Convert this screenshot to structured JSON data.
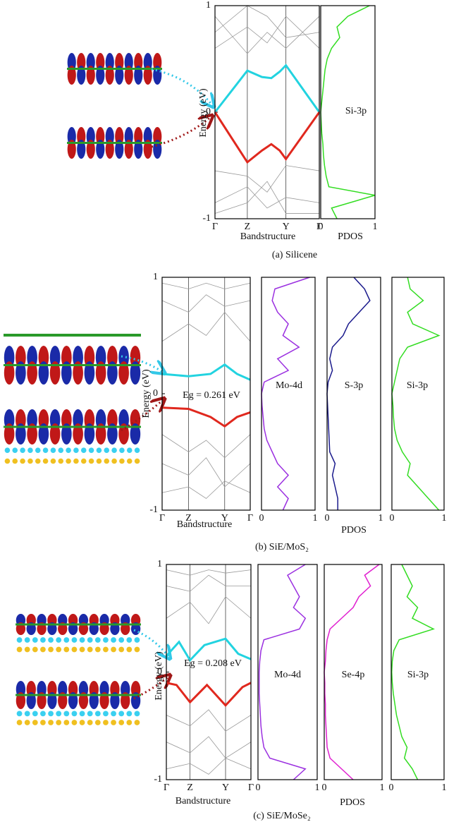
{
  "chart_data": [
    {
      "type": "band",
      "ylabel": "Energy (eV)",
      "xlabel": "Bandstructure",
      "caption": "(a)  Silicene",
      "xlim": [
        0,
        1
      ],
      "ylim": [
        -1,
        1
      ],
      "yticks": [
        -1,
        0,
        1
      ],
      "xticks": [
        {
          "value": 0,
          "label": "Γ"
        },
        {
          "value": 0.31,
          "label": "Z"
        },
        {
          "value": 0.68,
          "label": "Y"
        },
        {
          "value": 1,
          "label": "Γ"
        }
      ],
      "series": [
        {
          "color": "#999999",
          "x": [
            0,
            0.31,
            0.5,
            0.68,
            1
          ],
          "values": [
            0.6,
            0.8,
            0.65,
            0.9,
            0.6
          ]
        },
        {
          "color": "#999999",
          "x": [
            0,
            0.31,
            0.5,
            0.68,
            1
          ],
          "values": [
            0.9,
            0.55,
            0.75,
            0.6,
            0.9
          ]
        },
        {
          "color": "#999999",
          "x": [
            0,
            0.31,
            0.5,
            0.68,
            1
          ],
          "values": [
            0.75,
            1,
            0.9,
            0.7,
            0.75
          ]
        },
        {
          "color": "#999999",
          "x": [
            0,
            0.31,
            0.5,
            0.68,
            1
          ],
          "values": [
            -0.55,
            -0.6,
            -0.75,
            -0.5,
            -0.55
          ]
        },
        {
          "color": "#999999",
          "x": [
            0,
            0.31,
            0.5,
            0.68,
            1
          ],
          "values": [
            -0.85,
            -0.7,
            -0.9,
            -0.8,
            -0.85
          ]
        },
        {
          "color": "#999999",
          "x": [
            0,
            0.31,
            0.5,
            0.68,
            1
          ],
          "values": [
            -0.95,
            -0.85,
            -0.65,
            -0.95,
            -0.95
          ]
        },
        {
          "color": "#22d3e0",
          "highlight": true,
          "x": [
            0,
            0.31,
            0.45,
            0.54,
            0.62,
            0.68,
            0.84,
            1
          ],
          "values": [
            0,
            0.39,
            0.33,
            0.32,
            0.38,
            0.44,
            0.22,
            0
          ]
        },
        {
          "color": "#e0281e",
          "highlight": true,
          "x": [
            0,
            0.31,
            0.45,
            0.54,
            0.62,
            0.68,
            0.84,
            1
          ],
          "values": [
            0,
            -0.47,
            -0.36,
            -0.3,
            -0.36,
            -0.44,
            -0.22,
            0
          ]
        }
      ]
    },
    {
      "type": "pdos",
      "label": "Si-3p",
      "xlabel": "PDOS",
      "color": "#33dd22",
      "xlim": [
        0,
        1
      ],
      "xticks": [
        0,
        1
      ],
      "ylim": [
        -1,
        1
      ],
      "y": [
        -1,
        -0.9,
        -0.78,
        -0.7,
        -0.6,
        -0.5,
        -0.4,
        -0.3,
        -0.2,
        -0.1,
        0,
        0.1,
        0.2,
        0.3,
        0.4,
        0.5,
        0.6,
        0.7,
        0.8,
        0.9,
        1
      ],
      "values": [
        0.3,
        0.2,
        1,
        0.15,
        0.1,
        0.07,
        0.05,
        0.04,
        0.02,
        0.01,
        0,
        0.02,
        0.04,
        0.06,
        0.08,
        0.12,
        0.2,
        0.35,
        0.3,
        0.5,
        0.9
      ]
    },
    {
      "type": "band",
      "ylabel": "Energy (eV)",
      "xlabel": "Bandstructure",
      "caption": "(b)    SiE/MoS₂",
      "annotation": "Eg = 0.261 eV",
      "xlim": [
        0,
        1
      ],
      "ylim": [
        -1,
        1
      ],
      "yticks": [
        -1,
        0,
        1
      ],
      "xticks": [
        {
          "value": 0,
          "label": "Γ"
        },
        {
          "value": 0.3,
          "label": "Z"
        },
        {
          "value": 0.71,
          "label": "Y"
        },
        {
          "value": 1,
          "label": "Γ"
        }
      ],
      "series": [
        {
          "color": "#999999",
          "x": [
            0,
            0.3,
            0.5,
            0.71,
            1
          ],
          "values": [
            0.45,
            0.6,
            0.5,
            0.7,
            0.45
          ]
        },
        {
          "color": "#999999",
          "x": [
            0,
            0.3,
            0.5,
            0.71,
            1
          ],
          "values": [
            0.8,
            0.7,
            0.85,
            0.75,
            0.8
          ]
        },
        {
          "color": "#999999",
          "x": [
            0,
            0.3,
            0.5,
            0.71,
            1
          ],
          "values": [
            0.95,
            0.9,
            0.95,
            0.9,
            0.95
          ]
        },
        {
          "color": "#999999",
          "x": [
            0,
            0.3,
            0.5,
            0.71,
            1
          ],
          "values": [
            -0.35,
            -0.5,
            -0.4,
            -0.55,
            -0.35
          ]
        },
        {
          "color": "#999999",
          "x": [
            0,
            0.3,
            0.5,
            0.71,
            1
          ],
          "values": [
            -0.6,
            -0.7,
            -0.55,
            -0.8,
            -0.6
          ]
        },
        {
          "color": "#999999",
          "x": [
            0,
            0.3,
            0.5,
            0.71,
            1
          ],
          "values": [
            -0.85,
            -0.8,
            -0.9,
            -0.75,
            -0.85
          ]
        },
        {
          "color": "#22d3e0",
          "highlight": true,
          "x": [
            0,
            0.3,
            0.55,
            0.71,
            0.85,
            1
          ],
          "values": [
            0.17,
            0.15,
            0.17,
            0.25,
            0.17,
            0.12
          ]
        },
        {
          "color": "#e0281e",
          "highlight": true,
          "x": [
            0,
            0.3,
            0.55,
            0.71,
            0.85,
            1
          ],
          "values": [
            -0.12,
            -0.13,
            -0.2,
            -0.28,
            -0.2,
            -0.16
          ]
        }
      ]
    },
    {
      "type": "pdos",
      "label": "Mo-4d",
      "color": "#9b30e0",
      "xlim": [
        0,
        1
      ],
      "xticks": [
        0,
        1
      ],
      "ylim": [
        -1,
        1
      ],
      "y": [
        -1,
        -0.9,
        -0.8,
        -0.7,
        -0.6,
        -0.5,
        -0.4,
        -0.3,
        -0.2,
        -0.1,
        0,
        0.1,
        0.2,
        0.3,
        0.4,
        0.5,
        0.6,
        0.7,
        0.8,
        0.9,
        1
      ],
      "values": [
        0.4,
        0.5,
        0.3,
        0.5,
        0.3,
        0.2,
        0.1,
        0.05,
        0.03,
        0.01,
        0,
        0.05,
        0.5,
        0.3,
        0.7,
        0.4,
        0.5,
        0.3,
        0.2,
        0.25,
        0.9
      ]
    },
    {
      "type": "pdos",
      "label": "S-3p",
      "xlabel": "PDOS",
      "color": "#1a1a8c",
      "xlim": [
        0,
        1
      ],
      "xticks": [
        0,
        1
      ],
      "ylim": [
        -1,
        1
      ],
      "y": [
        -1,
        -0.9,
        -0.8,
        -0.7,
        -0.6,
        -0.5,
        -0.4,
        -0.3,
        -0.2,
        -0.1,
        0,
        0.1,
        0.2,
        0.3,
        0.4,
        0.5,
        0.6,
        0.7,
        0.8,
        0.9,
        1
      ],
      "values": [
        0.2,
        0.2,
        0.15,
        0.1,
        0.15,
        0.05,
        0.04,
        0.03,
        0.02,
        0.01,
        0,
        0.02,
        0.1,
        0.05,
        0.1,
        0.3,
        0.4,
        0.6,
        0.8,
        0.7,
        0.5
      ]
    },
    {
      "type": "pdos",
      "label": "Si-3p",
      "color": "#33dd22",
      "xlim": [
        0,
        1
      ],
      "xticks": [
        0,
        1
      ],
      "ylim": [
        -1,
        1
      ],
      "y": [
        -1,
        -0.9,
        -0.8,
        -0.7,
        -0.6,
        -0.5,
        -0.4,
        -0.3,
        -0.2,
        -0.1,
        0,
        0.1,
        0.2,
        0.3,
        0.4,
        0.5,
        0.6,
        0.7,
        0.8,
        0.9,
        1
      ],
      "values": [
        0.9,
        0.7,
        0.5,
        0.3,
        0.35,
        0.2,
        0.1,
        0.05,
        0.03,
        0.02,
        0,
        0.05,
        0.1,
        0.15,
        0.3,
        0.9,
        0.4,
        0.3,
        0.6,
        0.35,
        0.3
      ]
    },
    {
      "type": "band",
      "ylabel": "Energy (eV)",
      "xlabel": "Bandstructure",
      "caption": "(c)  SiE/MoSe₂",
      "annotation": "Eg = 0.208 eV",
      "xlim": [
        0,
        1
      ],
      "ylim": [
        -1,
        1
      ],
      "yticks": [
        -1,
        0,
        1
      ],
      "xticks": [
        {
          "value": 0,
          "label": "Γ"
        },
        {
          "value": 0.28,
          "label": "Z"
        },
        {
          "value": 0.7,
          "label": "Y"
        },
        {
          "value": 1,
          "label": "Γ"
        }
      ],
      "series": [
        {
          "color": "#999999",
          "x": [
            0,
            0.28,
            0.5,
            0.7,
            1
          ],
          "values": [
            0.5,
            0.65,
            0.45,
            0.7,
            0.5
          ]
        },
        {
          "color": "#999999",
          "x": [
            0,
            0.28,
            0.5,
            0.7,
            1
          ],
          "values": [
            0.8,
            0.75,
            0.9,
            0.8,
            0.8
          ]
        },
        {
          "color": "#999999",
          "x": [
            0,
            0.28,
            0.5,
            0.7,
            1
          ],
          "values": [
            0.95,
            0.9,
            0.95,
            0.92,
            0.95
          ]
        },
        {
          "color": "#999999",
          "x": [
            0,
            0.28,
            0.5,
            0.7,
            1
          ],
          "values": [
            -0.4,
            -0.5,
            -0.35,
            -0.55,
            -0.4
          ]
        },
        {
          "color": "#999999",
          "x": [
            0,
            0.28,
            0.5,
            0.7,
            1
          ],
          "values": [
            -0.65,
            -0.75,
            -0.6,
            -0.8,
            -0.65
          ]
        },
        {
          "color": "#999999",
          "x": [
            0,
            0.28,
            0.5,
            0.7,
            1
          ],
          "values": [
            -0.9,
            -0.85,
            -0.95,
            -0.8,
            -0.9
          ]
        },
        {
          "color": "#22d3e0",
          "highlight": true,
          "x": [
            0,
            0.15,
            0.28,
            0.45,
            0.7,
            0.85,
            1
          ],
          "values": [
            0.15,
            0.28,
            0.11,
            0.25,
            0.31,
            0.17,
            0.12
          ]
        },
        {
          "color": "#e0281e",
          "highlight": true,
          "x": [
            0,
            0.12,
            0.28,
            0.48,
            0.7,
            0.9,
            1
          ],
          "values": [
            -0.1,
            -0.12,
            -0.28,
            -0.12,
            -0.31,
            -0.14,
            -0.1
          ]
        }
      ]
    },
    {
      "type": "pdos",
      "label": "Mo-4d",
      "color": "#9b30e0",
      "xlim": [
        0,
        1
      ],
      "xticks": [
        0,
        1
      ],
      "ylim": [
        -1,
        1
      ],
      "y": [
        -1,
        -0.9,
        -0.8,
        -0.7,
        -0.6,
        -0.5,
        -0.4,
        -0.3,
        -0.2,
        -0.1,
        0,
        0.1,
        0.2,
        0.3,
        0.4,
        0.5,
        0.6,
        0.7,
        0.8,
        0.9,
        1
      ],
      "values": [
        0.6,
        0.8,
        0.2,
        0.1,
        0.07,
        0.05,
        0.04,
        0.03,
        0.02,
        0.02,
        0.02,
        0.03,
        0.05,
        0.1,
        0.7,
        0.8,
        0.6,
        0.7,
        0.6,
        0.5,
        0.8
      ]
    },
    {
      "type": "pdos",
      "label": "Se-4p",
      "xlabel": "PDOS",
      "color": "#e020d0",
      "xlim": [
        0,
        1
      ],
      "xticks": [
        0,
        1
      ],
      "ylim": [
        -1,
        1
      ],
      "y": [
        -1,
        -0.9,
        -0.8,
        -0.7,
        -0.6,
        -0.5,
        -0.4,
        -0.3,
        -0.2,
        -0.1,
        0,
        0.1,
        0.2,
        0.3,
        0.4,
        0.5,
        0.6,
        0.7,
        0.8,
        0.9,
        1
      ],
      "values": [
        0.5,
        0.3,
        0.1,
        0.05,
        0.04,
        0.03,
        0.02,
        0.02,
        0.01,
        0.01,
        0,
        0.02,
        0.03,
        0.05,
        0.1,
        0.3,
        0.5,
        0.6,
        0.8,
        0.7,
        0.95
      ]
    },
    {
      "type": "pdos",
      "label": "Si-3p",
      "color": "#33dd22",
      "xlim": [
        0,
        1
      ],
      "xticks": [
        0,
        1
      ],
      "ylim": [
        -1,
        1
      ],
      "y": [
        -1,
        -0.9,
        -0.8,
        -0.7,
        -0.6,
        -0.5,
        -0.4,
        -0.3,
        -0.2,
        -0.1,
        0,
        0.1,
        0.2,
        0.3,
        0.4,
        0.5,
        0.6,
        0.7,
        0.8,
        0.9,
        1
      ],
      "values": [
        0.5,
        0.4,
        0.25,
        0.3,
        0.2,
        0.15,
        0.1,
        0.07,
        0.04,
        0.02,
        0.01,
        0.02,
        0.05,
        0.15,
        0.8,
        0.4,
        0.5,
        0.3,
        0.4,
        0.3,
        0.2
      ]
    }
  ]
}
